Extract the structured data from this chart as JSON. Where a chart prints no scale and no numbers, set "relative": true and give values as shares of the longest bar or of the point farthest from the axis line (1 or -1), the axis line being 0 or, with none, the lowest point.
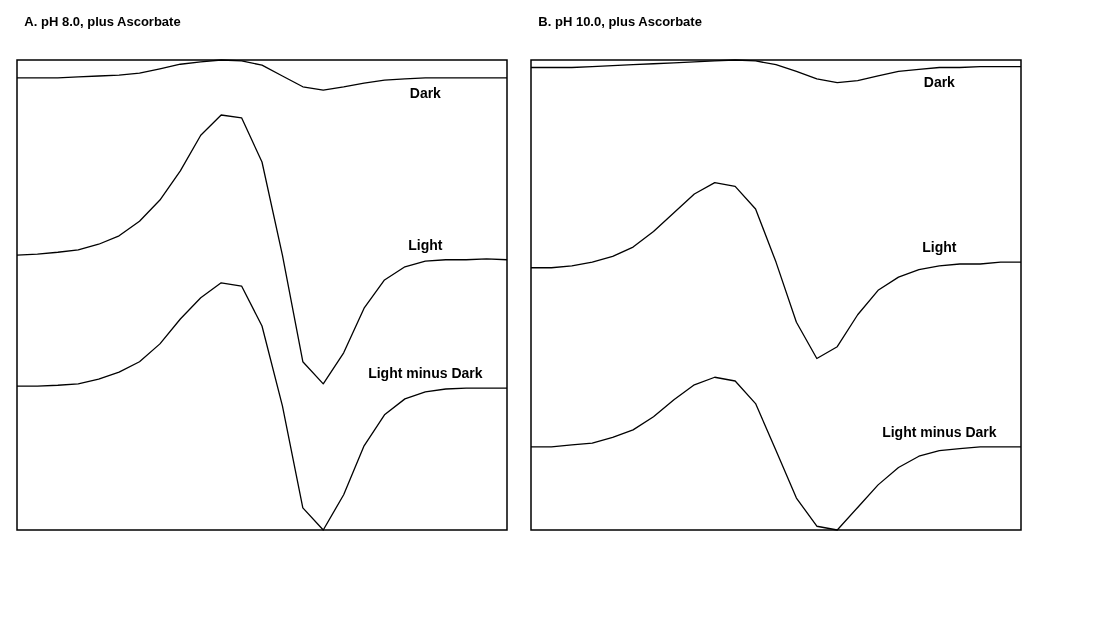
{
  "chart_data": [
    {
      "type": "line",
      "title": "A. pH 8.0, plus Ascorbate",
      "relative": true,
      "categories": [
        null,
        null,
        null,
        null,
        null,
        null,
        null,
        null,
        null,
        null,
        null,
        null,
        null,
        null,
        null,
        null,
        null,
        null,
        null,
        null,
        null,
        null,
        null,
        null,
        null
      ],
      "series": [
        {
          "name": "Dark",
          "color": "#000000",
          "values": [
            0.962,
            0.962,
            0.962,
            0.964,
            0.966,
            0.968,
            0.972,
            0.981,
            0.991,
            0.996,
            1.0,
            0.998,
            0.989,
            0.966,
            0.943,
            0.936,
            0.943,
            0.951,
            0.957,
            0.96,
            0.962,
            0.962,
            0.962,
            0.962,
            0.962
          ]
        },
        {
          "name": "Light",
          "color": "#000000",
          "values": [
            0.585,
            0.587,
            0.591,
            0.596,
            0.608,
            0.626,
            0.657,
            0.702,
            0.764,
            0.84,
            0.883,
            0.877,
            0.783,
            0.585,
            0.358,
            0.311,
            0.377,
            0.472,
            0.532,
            0.56,
            0.572,
            0.575,
            0.575,
            0.577,
            0.575
          ]
        },
        {
          "name": "Light minus Dark",
          "color": "#000000",
          "values": [
            0.306,
            0.306,
            0.308,
            0.311,
            0.321,
            0.336,
            0.358,
            0.396,
            0.449,
            0.494,
            0.526,
            0.519,
            0.434,
            0.264,
            0.047,
            0.0,
            0.075,
            0.179,
            0.245,
            0.279,
            0.294,
            0.3,
            0.302,
            0.302,
            0.302
          ]
        }
      ]
    },
    {
      "type": "line",
      "title": "B. pH 10.0, plus Ascorbate",
      "relative": true,
      "categories": [
        null,
        null,
        null,
        null,
        null,
        null,
        null,
        null,
        null,
        null,
        null,
        null,
        null,
        null,
        null,
        null,
        null,
        null,
        null,
        null,
        null,
        null,
        null,
        null,
        null
      ],
      "series": [
        {
          "name": "Dark",
          "color": "#000000",
          "values": [
            0.984,
            0.984,
            0.984,
            0.986,
            0.988,
            0.99,
            0.992,
            0.994,
            0.996,
            0.998,
            1.0,
            0.998,
            0.99,
            0.976,
            0.96,
            0.952,
            0.956,
            0.966,
            0.976,
            0.98,
            0.984,
            0.984,
            0.986,
            0.986,
            0.986
          ]
        },
        {
          "name": "Light",
          "color": "#000000",
          "values": [
            0.558,
            0.558,
            0.562,
            0.57,
            0.582,
            0.602,
            0.635,
            0.675,
            0.715,
            0.739,
            0.731,
            0.683,
            0.57,
            0.442,
            0.365,
            0.39,
            0.458,
            0.51,
            0.538,
            0.554,
            0.562,
            0.566,
            0.566,
            0.57,
            0.57
          ]
        },
        {
          "name": "Light minus Dark",
          "color": "#000000",
          "values": [
            0.177,
            0.177,
            0.181,
            0.185,
            0.197,
            0.213,
            0.241,
            0.277,
            0.309,
            0.325,
            0.317,
            0.269,
            0.169,
            0.068,
            0.008,
            0.0,
            0.048,
            0.096,
            0.133,
            0.157,
            0.169,
            0.173,
            0.177,
            0.177,
            0.177
          ]
        }
      ]
    }
  ]
}
